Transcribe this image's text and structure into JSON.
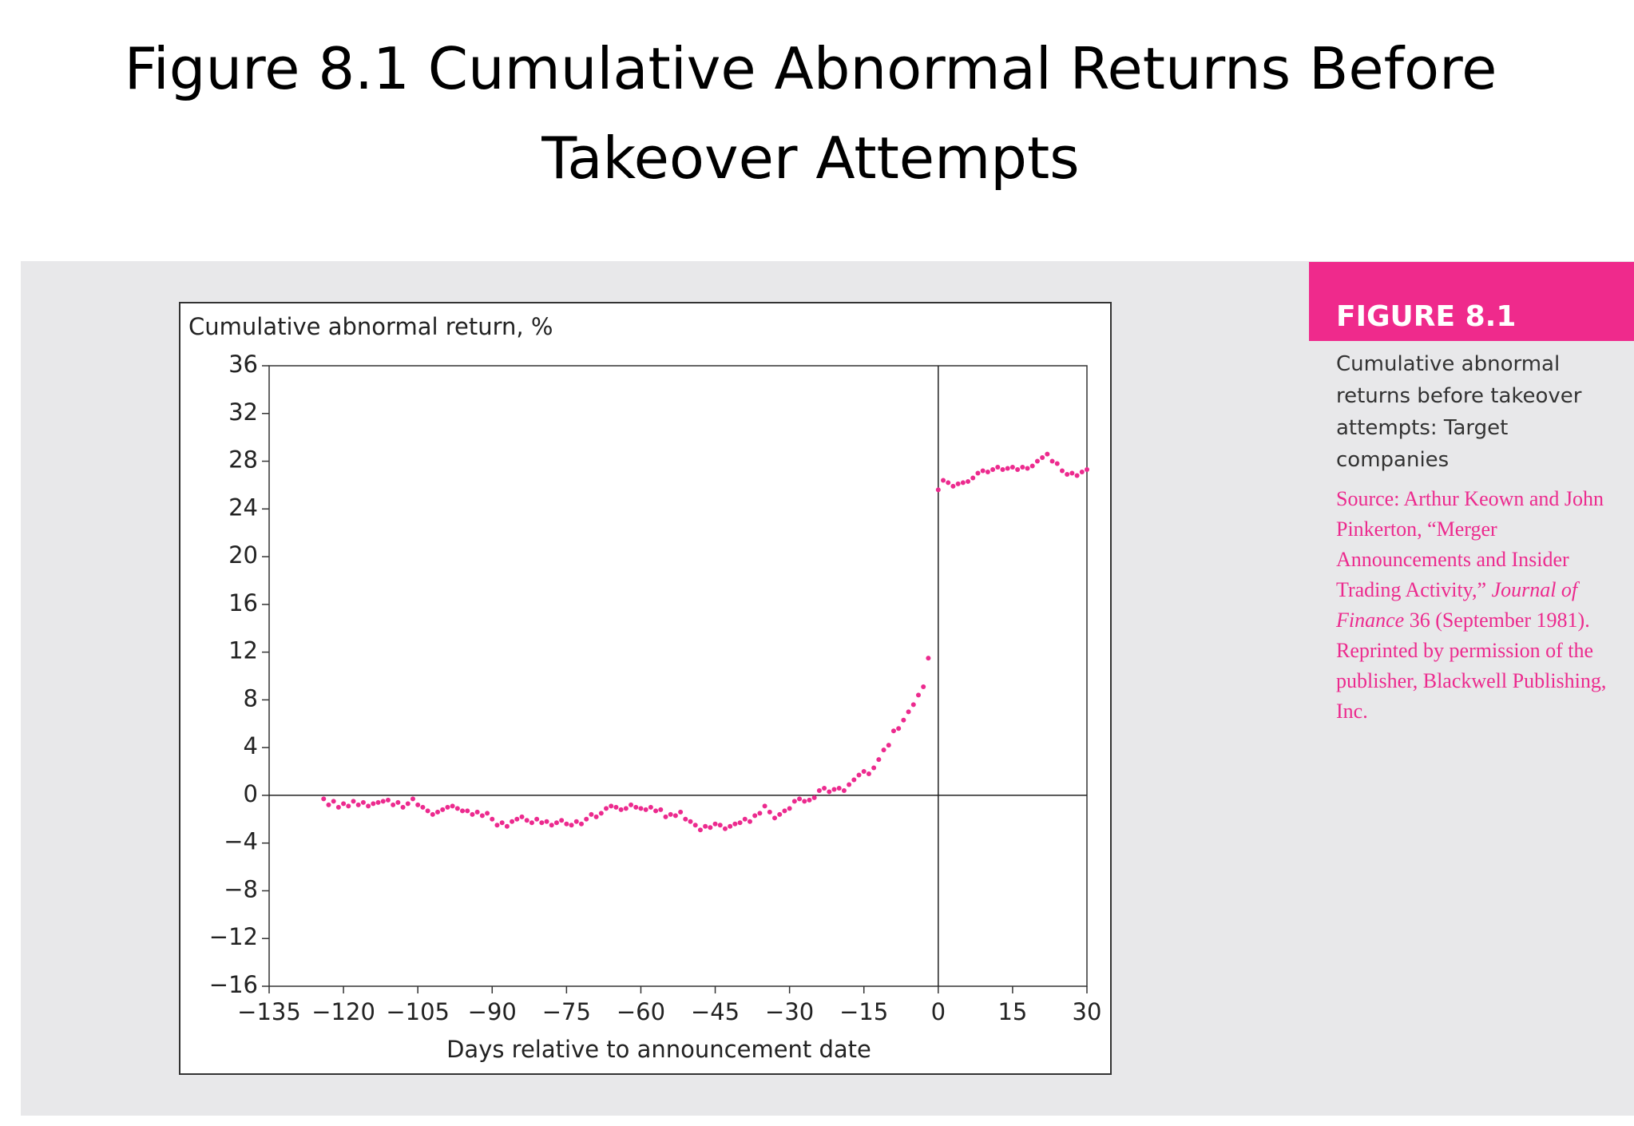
{
  "title": "Figure 8.1 Cumulative Abnormal Returns Before Takeover Attempts",
  "sidebar": {
    "label": "FIGURE 8.1",
    "caption": "Cumulative abnormal returns before takeover attempts: Target companies",
    "source": [
      "Source: Arthur Keown and John Pinkerton, “Merger Announcements and Insider Trading Activity,” ",
      "Journal of Finance",
      " 36 (September 1981). Reprinted by permission of the publisher, Blackwell Publishing, Inc."
    ]
  },
  "chart_data": {
    "type": "scatter",
    "y_label": "Cumulative abnormal return, %",
    "x_label": "Days relative to announcement date",
    "xlim": [
      -135,
      30
    ],
    "ylim": [
      -16,
      36
    ],
    "xticks": [
      {
        "value": -135,
        "label": "−135"
      },
      {
        "value": -120,
        "label": "−120"
      },
      {
        "value": -105,
        "label": "−105"
      },
      {
        "value": -90,
        "label": "−90"
      },
      {
        "value": -75,
        "label": "−75"
      },
      {
        "value": -60,
        "label": "−60"
      },
      {
        "value": -45,
        "label": "−45"
      },
      {
        "value": -30,
        "label": "−30"
      },
      {
        "value": -15,
        "label": "−15"
      },
      0,
      15,
      30
    ],
    "yticks": [
      {
        "value": -16,
        "label": "−16"
      },
      {
        "value": -12,
        "label": "−12"
      },
      {
        "value": -8,
        "label": "−8"
      },
      {
        "value": -4,
        "label": "−4"
      },
      0,
      4,
      8,
      12,
      16,
      20,
      24,
      28,
      32,
      36
    ],
    "series": [
      {
        "color": "#ec2a8e",
        "x": [
          -124,
          -123,
          -122,
          -121,
          -120,
          -119,
          -118,
          -117,
          -116,
          -115,
          -114,
          -113,
          -112,
          -111,
          -110,
          -109,
          -108,
          -107,
          -106,
          -105,
          -104,
          -103,
          -102,
          -101,
          -100,
          -99,
          -98,
          -97,
          -96,
          -95,
          -94,
          -93,
          -92,
          -91,
          -90,
          -89,
          -88,
          -87,
          -86,
          -85,
          -84,
          -83,
          -82,
          -81,
          -80,
          -79,
          -78,
          -77,
          -76,
          -75,
          -74,
          -73,
          -72,
          -71,
          -70,
          -69,
          -68,
          -67,
          -66,
          -65,
          -64,
          -63,
          -62,
          -61,
          -60,
          -59,
          -58,
          -57,
          -56,
          -55,
          -54,
          -53,
          -52,
          -51,
          -50,
          -49,
          -48,
          -47,
          -46,
          -45,
          -44,
          -43,
          -42,
          -41,
          -40,
          -39,
          -38,
          -37,
          -36,
          -35,
          -34,
          -33,
          -32,
          -31,
          -30,
          -29,
          -28,
          -27,
          -26,
          -25,
          -24,
          -23,
          -22,
          -21,
          -20,
          -19,
          -18,
          -17,
          -16,
          -15,
          -14,
          -13,
          -12,
          -11,
          -10,
          -9,
          -8,
          -7,
          -6,
          -5,
          -4,
          -3,
          -2,
          0,
          1,
          2,
          3,
          4,
          5,
          6,
          7,
          8,
          9,
          10,
          11,
          12,
          13,
          14,
          15,
          16,
          17,
          18,
          19,
          20,
          21,
          22,
          23,
          24,
          25,
          26,
          27,
          28,
          29,
          30
        ],
        "values": [
          -0.3,
          -0.8,
          -0.5,
          -1.0,
          -0.7,
          -0.9,
          -0.5,
          -0.8,
          -0.6,
          -0.9,
          -0.7,
          -0.6,
          -0.5,
          -0.4,
          -0.8,
          -0.6,
          -1.0,
          -0.7,
          -0.3,
          -0.8,
          -1.0,
          -1.3,
          -1.6,
          -1.4,
          -1.2,
          -1.0,
          -0.9,
          -1.1,
          -1.3,
          -1.3,
          -1.6,
          -1.4,
          -1.7,
          -1.5,
          -2.0,
          -2.5,
          -2.3,
          -2.6,
          -2.2,
          -2.0,
          -1.8,
          -2.1,
          -2.3,
          -2.0,
          -2.3,
          -2.2,
          -2.5,
          -2.3,
          -2.1,
          -2.4,
          -2.5,
          -2.2,
          -2.4,
          -2.0,
          -1.6,
          -1.8,
          -1.5,
          -1.1,
          -0.9,
          -1.0,
          -1.2,
          -1.1,
          -0.8,
          -1.0,
          -1.1,
          -1.2,
          -1.0,
          -1.3,
          -1.2,
          -1.8,
          -1.6,
          -1.7,
          -1.4,
          -2.0,
          -2.2,
          -2.5,
          -2.9,
          -2.6,
          -2.7,
          -2.4,
          -2.5,
          -2.8,
          -2.6,
          -2.4,
          -2.3,
          -2.0,
          -2.2,
          -1.7,
          -1.5,
          -0.9,
          -1.4,
          -1.9,
          -1.6,
          -1.3,
          -1.1,
          -0.5,
          -0.3,
          -0.5,
          -0.4,
          -0.2,
          0.4,
          0.6,
          0.3,
          0.5,
          0.6,
          0.4,
          0.9,
          1.3,
          1.7,
          2.0,
          1.8,
          2.3,
          3.0,
          3.8,
          4.2,
          5.4,
          5.6,
          6.3,
          7.0,
          7.6,
          8.4,
          9.1,
          11.5,
          25.6,
          26.4,
          26.2,
          25.9,
          26.1,
          26.2,
          26.3,
          26.6,
          27.0,
          27.2,
          27.1,
          27.3,
          27.5,
          27.3,
          27.4,
          27.5,
          27.3,
          27.5,
          27.4,
          27.6,
          28.0,
          28.3,
          28.6,
          28.0,
          27.8,
          27.2,
          26.9,
          27.0,
          26.8,
          27.1,
          27.3
        ]
      }
    ]
  }
}
